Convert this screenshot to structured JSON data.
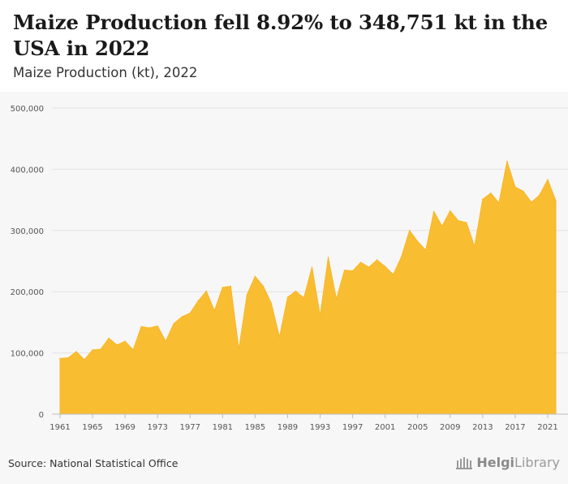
{
  "header": {
    "title": "Maize Production fell 8.92% to 348,751 kt in the USA in 2022",
    "subtitle": "Maize Production (kt), 2022"
  },
  "footer": {
    "source": "Source: National Statistical Office",
    "brand_bold": "Helgi",
    "brand_light": "Library",
    "brand_icon": "library-columns-icon"
  },
  "colors": {
    "area_fill": "#f9bd31",
    "area_stroke": "#f6b82a",
    "grid": "#e3e3e3",
    "background": "#f7f7f7",
    "tick_text": "#555555"
  },
  "chart_data": {
    "type": "area",
    "title": "",
    "xlabel": "",
    "ylabel": "",
    "grid": true,
    "ylim": [
      0,
      500000
    ],
    "y_ticks": [
      0,
      100000,
      200000,
      300000,
      400000,
      500000
    ],
    "y_tick_labels": [
      "0",
      "100,000",
      "200,000",
      "300,000",
      "400,000",
      "500,000"
    ],
    "x_tick_labels": [
      "1961",
      "1965",
      "1969",
      "1973",
      "1977",
      "1981",
      "1985",
      "1989",
      "1993",
      "1997",
      "2001",
      "2005",
      "2009",
      "2013",
      "2017",
      "2021"
    ],
    "x": [
      1961,
      1962,
      1963,
      1964,
      1965,
      1966,
      1967,
      1968,
      1969,
      1970,
      1971,
      1972,
      1973,
      1974,
      1975,
      1976,
      1977,
      1978,
      1979,
      1980,
      1981,
      1982,
      1983,
      1984,
      1985,
      1986,
      1987,
      1988,
      1989,
      1990,
      1991,
      1992,
      1993,
      1994,
      1995,
      1996,
      1997,
      1998,
      1999,
      2000,
      2001,
      2002,
      2003,
      2004,
      2005,
      2006,
      2007,
      2008,
      2009,
      2010,
      2011,
      2012,
      2013,
      2014,
      2015,
      2016,
      2017,
      2018,
      2019,
      2020,
      2021,
      2022
    ],
    "series": [
      {
        "values": [
          91000,
          92000,
          102000,
          89000,
          105000,
          106000,
          124000,
          113000,
          119000,
          105000,
          143000,
          141000,
          144000,
          119000,
          148000,
          159000,
          165000,
          185000,
          201000,
          169000,
          207000,
          209000,
          106000,
          195000,
          225000,
          209000,
          181000,
          126000,
          191000,
          201000,
          190000,
          240000,
          161000,
          256000,
          188000,
          235000,
          234000,
          248000,
          240000,
          252000,
          241000,
          228000,
          257000,
          300000,
          282000,
          268000,
          331000,
          307000,
          332000,
          316000,
          313000,
          274000,
          351000,
          361000,
          345000,
          413000,
          371000,
          364000,
          346000,
          358000,
          383000,
          348751
        ]
      }
    ]
  }
}
